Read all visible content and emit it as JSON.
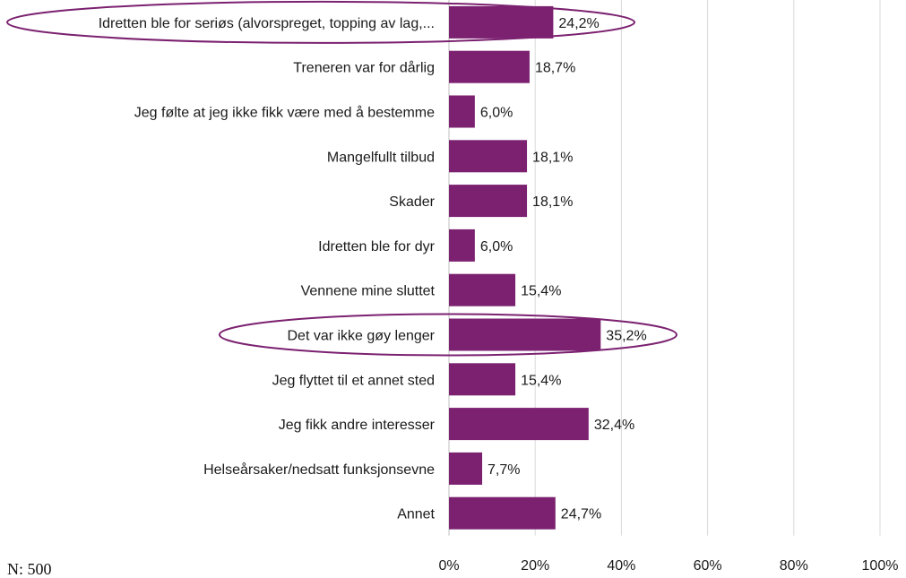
{
  "chart_data": {
    "type": "bar",
    "orientation": "horizontal",
    "categories": [
      "Idretten ble for seriøs (alvorspreget, topping av lag,...",
      "Treneren var for dårlig",
      "Jeg følte at jeg ikke fikk være med å bestemme",
      "Mangelfullt tilbud",
      "Skader",
      "Idretten ble for dyr",
      "Vennene mine sluttet",
      "Det var ikke gøy lenger",
      "Jeg flyttet til et annet sted",
      "Jeg fikk andre interesser",
      "Helseårsaker/nedsatt funksjonsevne",
      "Annet"
    ],
    "values": [
      24.2,
      18.7,
      6.0,
      18.1,
      18.1,
      6.0,
      15.4,
      35.2,
      15.4,
      32.4,
      7.7,
      24.7
    ],
    "value_labels": [
      "24,2%",
      "18,7%",
      "6,0%",
      "18,1%",
      "18,1%",
      "6,0%",
      "15,4%",
      "35,2%",
      "15,4%",
      "32,4%",
      "7,7%",
      "24,7%"
    ],
    "xlim": [
      0,
      100
    ],
    "x_ticks": [
      "0%",
      "20%",
      "40%",
      "60%",
      "80%",
      "100%"
    ],
    "grid": true,
    "highlighted_categories": [
      0,
      7
    ],
    "bar_color": "#7b2170",
    "highlight_outline_color": "#7b2170",
    "grid_color": "#d9d9d9"
  },
  "footnote": "N: 500"
}
